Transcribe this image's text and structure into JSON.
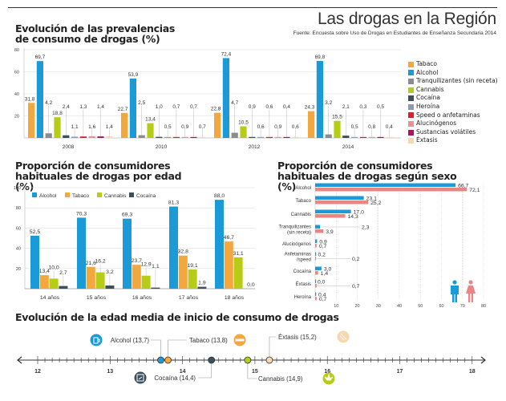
{
  "header": {
    "title": "Las drogas en la Región",
    "source": "Fuente: Encuesta sobre Uso de Drogas en Estudiantes de Enseñanza Secundaria 2014"
  },
  "colors": {
    "Tabaco": "#f3a73f",
    "Alcohol": "#1a9ad6",
    "Tranquilizantes (sin receta)": "#8c8c8c",
    "Cannabis": "#b6cc17",
    "Cocaína": "#3d4f5c",
    "Heroína": "#8d9bb0",
    "Speed o anfetaminas": "#d91f2a",
    "Alucinógenos": "#eb8f8f",
    "Sustancias volátiles": "#b0135a",
    "Éxtasis": "#f7d6b0",
    "Hombres": "#1a9ad6",
    "Mujeres": "#eb8585"
  },
  "chart_data": [
    {
      "id": "prevalencias",
      "type": "bar",
      "title": "Evolución de las prevalencias de consumo de drogas (%)",
      "categories": [
        "2008",
        "2010",
        "2012",
        "2014"
      ],
      "ylim": [
        0,
        80
      ],
      "yticks": [
        "0",
        "20",
        "40",
        "60",
        "80"
      ],
      "grid": true,
      "legend_position": "right",
      "series": [
        {
          "name": "Tabaco",
          "values": [
            31.8,
            22.7,
            22.8,
            24.3
          ],
          "labels": [
            "31,8",
            "22,7",
            "22,8",
            "24,3"
          ]
        },
        {
          "name": "Alcohol",
          "values": [
            69.7,
            53.9,
            72.4,
            69.8
          ],
          "labels": [
            "69,7",
            "53,9",
            "72,4",
            "69,8"
          ]
        },
        {
          "name": "Tranquilizantes (sin receta)",
          "values": [
            4.2,
            2.5,
            4.7,
            3.2
          ],
          "labels": [
            "4,2",
            "2,5",
            "4,7",
            "3,2"
          ]
        },
        {
          "name": "Cannabis",
          "values": [
            18.8,
            13.4,
            10.5,
            15.5
          ],
          "labels": [
            "18,8",
            "13,4",
            "10,5",
            "15,5"
          ]
        },
        {
          "name": "Cocaína",
          "values": [
            2.4,
            1.0,
            0.9,
            2.1
          ],
          "labels": [
            "2,4",
            "1,0",
            "0,9",
            "2,1"
          ]
        },
        {
          "name": "Heroína",
          "values": [
            1.1,
            0.5,
            0.6,
            0.5
          ],
          "labels": [
            "1,1",
            "0,5",
            "0,6",
            "0,5"
          ]
        },
        {
          "name": "Speed o anfetaminas",
          "values": [
            1.3,
            0.7,
            0.6,
            0.3
          ],
          "labels": [
            "1,3",
            "0,7",
            "0,6",
            "0,3"
          ]
        },
        {
          "name": "Alucinógenos",
          "values": [
            1.6,
            0.9,
            0.9,
            0.8
          ],
          "labels": [
            "1,6",
            "0,9",
            "0,9",
            "0,8"
          ]
        },
        {
          "name": "Sustancias volátiles",
          "values": [
            1.4,
            0.7,
            0.4,
            0.5
          ],
          "labels": [
            "1,4",
            "0,7",
            "0,4",
            "0,5"
          ]
        },
        {
          "name": "Éxtasis",
          "values": [
            1.4,
            0.7,
            0.6,
            0.4
          ],
          "labels": [
            "1,4",
            "0,7",
            "0,6",
            "0,4"
          ]
        }
      ]
    },
    {
      "id": "edad",
      "type": "bar",
      "title": "Proporción de consumidores habituales de drogas por edad (%)",
      "categories": [
        "14 años",
        "15 años",
        "16 años",
        "17 años",
        "18 años"
      ],
      "ylim": [
        0,
        100
      ],
      "yticks": [
        "0",
        "20",
        "40",
        "60",
        "80",
        "100"
      ],
      "grid": true,
      "legend_position": "top",
      "series": [
        {
          "name": "Alcohol",
          "values": [
            52.5,
            70.3,
            69.3,
            81.3,
            88.0
          ],
          "labels": [
            "52,5",
            "70,3",
            "69,3",
            "81,3",
            "88,0"
          ]
        },
        {
          "name": "Tabaco",
          "values": [
            13.4,
            21.6,
            23.7,
            32.8,
            46.7
          ],
          "labels": [
            "13,4",
            "21,6",
            "23,7",
            "32,8",
            "46,7"
          ]
        },
        {
          "name": "Cannabis",
          "values": [
            10.0,
            16.2,
            12.9,
            19.1,
            31.1
          ],
          "labels": [
            "10,0",
            "16,2",
            "12,9",
            "19,1",
            "31,1"
          ]
        },
        {
          "name": "Cocaína",
          "values": [
            2.7,
            3.2,
            1.1,
            1.9,
            0.0
          ],
          "labels": [
            "2,7",
            "3,2",
            "1,1",
            "1,9",
            "0,0"
          ]
        }
      ]
    },
    {
      "id": "sexo",
      "type": "bar",
      "orientation": "horizontal",
      "title": "Proporción de consumidores habituales de drogas según sexo (%)",
      "categories": [
        "Alcohol",
        "Tabaco",
        "Cannabis",
        "Tranquilizantes (sin receta)",
        "Alucinógenos",
        "Anfetaminas /speed",
        "Cocaína",
        "Éxtasis",
        "Heroína"
      ],
      "category_lines": [
        [
          "Alcohol"
        ],
        [
          "Tabaco"
        ],
        [
          "Cannabis"
        ],
        [
          "Tranquilizantes",
          "(sin receta)"
        ],
        [
          "Alucinógenos"
        ],
        [
          "Anfetaminas",
          "/speed"
        ],
        [
          "Cocaína"
        ],
        [
          "Éxtasis"
        ],
        [
          "Heroína"
        ]
      ],
      "xlim": [
        0,
        80
      ],
      "xticks": [
        "10",
        "20",
        "30",
        "40",
        "50",
        "60",
        "70",
        "80"
      ],
      "grid": true,
      "series": [
        {
          "name": "Hombres",
          "values": [
            66.7,
            23.1,
            17.0,
            2.3,
            0.9,
            0.2,
            3.0,
            0.0,
            0.4
          ],
          "labels": [
            "66,7",
            "23,1",
            "17,0",
            "2,3",
            "0,9",
            "0,2",
            "3,0",
            "0,0",
            "0,4"
          ]
        },
        {
          "name": "Mujeres",
          "values": [
            72.1,
            25.2,
            14.3,
            3.9,
            0.7,
            0.2,
            1.4,
            0.7,
            0.7
          ],
          "labels": [
            "72,1",
            "25,2",
            "14,3",
            "3,9",
            "0,7",
            "0,2",
            "1,4",
            "0,7",
            "0,7"
          ]
        }
      ]
    },
    {
      "id": "edad-inicio",
      "type": "scatter",
      "title": "Evolución de la edad media de inicio de consumo de drogas",
      "xlim": [
        11.7,
        18.2
      ],
      "xticks": [
        "12",
        "13",
        "14",
        "15",
        "16",
        "17",
        "18"
      ],
      "points": [
        {
          "name": "Alcohol",
          "value": 13.7,
          "label": "Alcohol (13,7)",
          "icon": "beer-mug-icon",
          "side": "top"
        },
        {
          "name": "Tabaco",
          "value": 13.8,
          "label": "Tabaco (13,8)",
          "icon": "cigarette-icon",
          "side": "top"
        },
        {
          "name": "Cocaína",
          "value": 14.4,
          "label": "Cocaína (14,4)",
          "icon": "cocaine-icon",
          "side": "bottom"
        },
        {
          "name": "Cannabis",
          "value": 14.9,
          "label": "Cannabis (14,9)",
          "icon": "cannabis-leaf-icon",
          "side": "bottom"
        },
        {
          "name": "Éxtasis",
          "value": 15.2,
          "label": "Éxtasis (15,2)",
          "icon": "pill-icon",
          "side": "top"
        }
      ]
    }
  ]
}
